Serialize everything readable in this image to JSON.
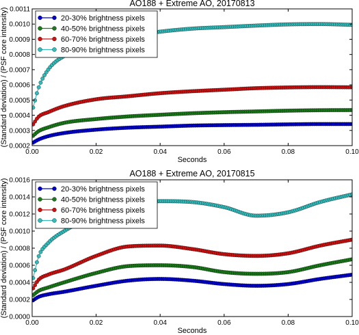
{
  "figure": {
    "ylabel": "(Standard deviation) / (PSF core intensity)",
    "xlabel": "Seconds"
  },
  "chart_data": [
    {
      "type": "line",
      "title": "AO188 + Extreme AO, 20170813",
      "xlabel": "Seconds",
      "ylabel": "(Standard deviation) / (PSF core intensity)",
      "xlim": [
        0,
        0.1
      ],
      "ylim": [
        0.0002,
        0.0011
      ],
      "xticks": [
        0,
        0.02,
        0.04,
        0.06,
        0.08,
        0.1
      ],
      "xtick_labels": [
        "0.00",
        "0.02",
        "0.04",
        "0.06",
        "0.08",
        "0.10"
      ],
      "yticks": [
        0.0002,
        0.0003,
        0.0004,
        0.0005,
        0.0006,
        0.0007,
        0.0008,
        0.0009,
        0.001,
        0.0011
      ],
      "ytick_labels": [
        "0.0002",
        "0.0003",
        "0.0004",
        "0.0005",
        "0.0006",
        "0.0007",
        "0.0008",
        "0.0009",
        "0.0010",
        "0.0011"
      ],
      "grid": false,
      "legend_position": "top-left",
      "x": [
        0.0003,
        0.002,
        0.005,
        0.01,
        0.02,
        0.03,
        0.04,
        0.05,
        0.06,
        0.07,
        0.08,
        0.09,
        0.1
      ],
      "series": [
        {
          "name": "20-30% brightness pixels",
          "color": "#0000cc",
          "values": [
            0.00022,
            0.00024,
            0.000262,
            0.000283,
            0.000305,
            0.000318,
            0.000325,
            0.000332,
            0.000335,
            0.000337,
            0.00034,
            0.000342,
            0.000342
          ]
        },
        {
          "name": "40-50% brightness pixels",
          "color": "#1a7a1a",
          "values": [
            0.000265,
            0.000295,
            0.00032,
            0.00035,
            0.000375,
            0.000392,
            0.000403,
            0.000413,
            0.00042,
            0.000425,
            0.00043,
            0.000433,
            0.000434
          ]
        },
        {
          "name": "60-70% brightness pixels",
          "color": "#cc1111",
          "values": [
            0.00034,
            0.00039,
            0.00042,
            0.00046,
            0.000505,
            0.000525,
            0.000545,
            0.000558,
            0.000568,
            0.000578,
            0.000583,
            0.000585,
            0.000584
          ]
        },
        {
          "name": "80-90% brightness pixels",
          "color": "#33bbbb",
          "values": [
            0.00045,
            0.00058,
            0.0007,
            0.00079,
            0.00087,
            0.00092,
            0.00095,
            0.00097,
            0.00098,
            0.00099,
            0.000998,
            0.001,
            0.000995
          ]
        }
      ]
    },
    {
      "type": "line",
      "title": "AO188 + Extreme AO, 20170815",
      "xlabel": "Seconds",
      "ylabel": "(Standard deviation) / (PSF core intensity)",
      "xlim": [
        0,
        0.1
      ],
      "ylim": [
        0,
        0.0016
      ],
      "xticks": [
        0,
        0.02,
        0.04,
        0.06,
        0.08,
        0.1
      ],
      "xtick_labels": [
        "0.00",
        "0.02",
        "0.04",
        "0.06",
        "0.08",
        "0.10"
      ],
      "yticks": [
        0,
        0.0002,
        0.0004,
        0.0006,
        0.0008,
        0.001,
        0.0012,
        0.0014,
        0.0016
      ],
      "ytick_labels": [
        "0.0000",
        "0.0002",
        "0.0004",
        "0.0006",
        "0.0008",
        "0.0010",
        "0.0012",
        "0.0014",
        "0.0016"
      ],
      "grid": false,
      "legend_position": "top-left",
      "x": [
        0.0003,
        0.002,
        0.005,
        0.01,
        0.02,
        0.03,
        0.04,
        0.05,
        0.06,
        0.07,
        0.08,
        0.09,
        0.1
      ],
      "series": [
        {
          "name": "20-30% brightness pixels",
          "color": "#0000cc",
          "values": [
            0.00019,
            0.00023,
            0.00026,
            0.00029,
            0.00036,
            0.00042,
            0.00044,
            0.00042,
            0.00038,
            0.00036,
            0.00038,
            0.00044,
            0.00049
          ]
        },
        {
          "name": "40-50% brightness pixels",
          "color": "#1a7a1a",
          "values": [
            0.00025,
            0.0003,
            0.00034,
            0.0004,
            0.00051,
            0.00059,
            0.0006,
            0.00058,
            0.00052,
            0.0005,
            0.00052,
            0.0006,
            0.00067
          ]
        },
        {
          "name": "60-70% brightness pixels",
          "color": "#cc1111",
          "values": [
            0.00033,
            0.00043,
            0.00049,
            0.00055,
            0.00071,
            0.00082,
            0.00083,
            0.00079,
            0.00073,
            0.00071,
            0.00074,
            0.00083,
            0.0009
          ]
        },
        {
          "name": "80-90% brightness pixels",
          "color": "#33bbbb",
          "values": [
            0.00045,
            0.0007,
            0.00086,
            0.001,
            0.00118,
            0.00128,
            0.00135,
            0.00134,
            0.00128,
            0.00118,
            0.00122,
            0.00134,
            0.00143
          ]
        }
      ]
    }
  ]
}
